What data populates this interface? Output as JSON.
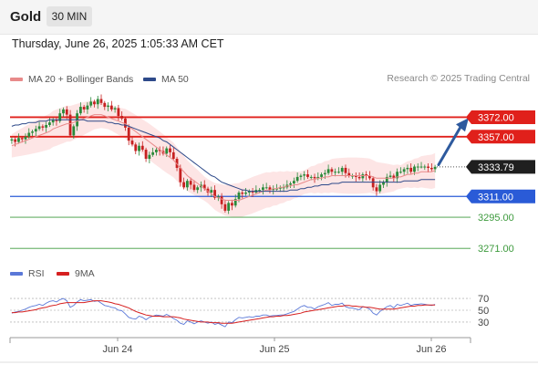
{
  "header": {
    "symbol": "Gold",
    "timeframe": "30 MIN",
    "timestamp": "Thursday, June 26, 2025 1:05:33 AM CET"
  },
  "legend": {
    "ma20_label": "MA 20 + Bollinger Bands",
    "ma50_label": "MA 50",
    "credit": "Research © 2025 Trading Central",
    "colors": {
      "ma20": "#e88a8a",
      "ma50": "#2e4a8a",
      "bands": "#fde0e0"
    }
  },
  "rsi_legend": {
    "rsi_label": "RSI",
    "ma9_label": "9MA",
    "colors": {
      "rsi": "#5a78d8",
      "ma9": "#d62020"
    }
  },
  "chart_data": {
    "type": "candlestick",
    "price_range": [
      3262,
      3392
    ],
    "current_price": 3333.79,
    "current_price_label": "3333.79",
    "levels": [
      {
        "value": 3372.0,
        "label": "3372.00",
        "kind": "resistance",
        "color": "#e0201b"
      },
      {
        "value": 3357.0,
        "label": "3357.00",
        "kind": "resistance",
        "color": "#e0201b"
      },
      {
        "value": 3311.0,
        "label": "3311.00",
        "kind": "pivot",
        "color": "#2a5bd7"
      },
      {
        "value": 3295.0,
        "label": "3295.00",
        "kind": "support",
        "color": "#3d9a3d"
      },
      {
        "value": 3271.0,
        "label": "3271.00",
        "kind": "support",
        "color": "#3d9a3d"
      }
    ],
    "forecast_arrow": {
      "from": 3334,
      "to": 3370,
      "direction": "up"
    },
    "x_ticks": [
      "Jun 24",
      "Jun 25",
      "Jun 26"
    ],
    "candles_close": [
      3355,
      3353,
      3356,
      3355,
      3357,
      3360,
      3361,
      3363,
      3365,
      3364,
      3366,
      3368,
      3370,
      3369,
      3375,
      3378,
      3374,
      3358,
      3365,
      3375,
      3380,
      3378,
      3381,
      3384,
      3382,
      3386,
      3383,
      3380,
      3381,
      3378,
      3379,
      3373,
      3371,
      3364,
      3354,
      3351,
      3346,
      3350,
      3347,
      3340,
      3343,
      3345,
      3347,
      3346,
      3344,
      3348,
      3345,
      3340,
      3333,
      3322,
      3318,
      3323,
      3320,
      3316,
      3318,
      3320,
      3317,
      3314,
      3316,
      3310,
      3311,
      3305,
      3300,
      3306,
      3304,
      3309,
      3314,
      3313,
      3314,
      3315,
      3314,
      3316,
      3316,
      3318,
      3318,
      3316,
      3317,
      3317,
      3318,
      3318,
      3320,
      3321,
      3323,
      3326,
      3327,
      3328,
      3326,
      3326,
      3325,
      3326,
      3328,
      3329,
      3332,
      3330,
      3330,
      3330,
      3333,
      3329,
      3327,
      3327,
      3326,
      3325,
      3328,
      3327,
      3325,
      3318,
      3315,
      3320,
      3322,
      3326,
      3327,
      3325,
      3330,
      3330,
      3332,
      3333,
      3330,
      3334,
      3334,
      3334,
      3334,
      3333,
      3332,
      3333.79
    ],
    "ma20": [
      3350,
      3351,
      3352,
      3353,
      3354,
      3355,
      3356,
      3357,
      3358,
      3359,
      3360,
      3361,
      3363,
      3364,
      3365,
      3366,
      3367,
      3367,
      3368,
      3369,
      3370,
      3371,
      3372,
      3373,
      3374,
      3374,
      3374,
      3373,
      3372,
      3371,
      3370,
      3369,
      3368,
      3367,
      3365,
      3363,
      3361,
      3359,
      3357,
      3355,
      3353,
      3351,
      3349,
      3347,
      3345,
      3343,
      3341,
      3339,
      3336,
      3333,
      3330,
      3327,
      3325,
      3323,
      3321,
      3319,
      3317,
      3315,
      3313,
      3311,
      3310,
      3309,
      3308,
      3308,
      3308,
      3308,
      3308,
      3309,
      3310,
      3311,
      3312,
      3313,
      3314,
      3315,
      3316,
      3316,
      3317,
      3317,
      3318,
      3318,
      3319,
      3319,
      3320,
      3320,
      3321,
      3322,
      3323,
      3324,
      3324,
      3325,
      3325,
      3326,
      3326,
      3327,
      3327,
      3327,
      3327,
      3327,
      3327,
      3327,
      3327,
      3327,
      3327,
      3327,
      3327,
      3326,
      3325,
      3325,
      3325,
      3325,
      3325,
      3325,
      3326,
      3326,
      3327,
      3328,
      3328,
      3329,
      3329,
      3330,
      3330,
      3330,
      3330,
      3331
    ],
    "ma50": [
      3365,
      3366,
      3366,
      3367,
      3367,
      3368,
      3368,
      3368,
      3369,
      3369,
      3369,
      3370,
      3370,
      3370,
      3370,
      3370,
      3370,
      3370,
      3370,
      3370,
      3370,
      3370,
      3369,
      3369,
      3369,
      3369,
      3369,
      3369,
      3368,
      3368,
      3367,
      3367,
      3366,
      3366,
      3365,
      3364,
      3363,
      3362,
      3361,
      3360,
      3359,
      3358,
      3357,
      3356,
      3354,
      3353,
      3351,
      3349,
      3347,
      3345,
      3343,
      3341,
      3339,
      3337,
      3335,
      3333,
      3331,
      3329,
      3327,
      3326,
      3324,
      3322,
      3321,
      3320,
      3319,
      3318,
      3317,
      3316,
      3316,
      3315,
      3315,
      3315,
      3315,
      3315,
      3315,
      3315,
      3315,
      3315,
      3315,
      3315,
      3315,
      3316,
      3316,
      3316,
      3317,
      3317,
      3318,
      3318,
      3319,
      3319,
      3320,
      3320,
      3320,
      3321,
      3321,
      3321,
      3322,
      3322,
      3322,
      3322,
      3322,
      3322,
      3322,
      3322,
      3322,
      3322,
      3322,
      3322,
      3322,
      3322,
      3322,
      3322,
      3322,
      3322,
      3323,
      3323,
      3323,
      3323,
      3323,
      3324,
      3324,
      3324,
      3324,
      3324
    ],
    "rsi": {
      "range": [
        16,
        84
      ],
      "ticks": [
        70,
        50,
        30
      ],
      "tick_labels": [
        "70",
        "50",
        "30"
      ],
      "values": [
        45,
        47,
        48,
        50,
        52,
        55,
        57,
        58,
        60,
        58,
        62,
        65,
        66,
        64,
        68,
        70,
        66,
        55,
        58,
        64,
        68,
        66,
        67,
        68,
        65,
        66,
        62,
        58,
        57,
        55,
        54,
        50,
        49,
        44,
        38,
        36,
        35,
        40,
        38,
        34,
        38,
        40,
        42,
        41,
        40,
        43,
        40,
        36,
        33,
        28,
        26,
        32,
        30,
        27,
        30,
        32,
        30,
        28,
        30,
        26,
        28,
        25,
        22,
        30,
        29,
        34,
        38,
        37,
        38,
        39,
        38,
        40,
        40,
        42,
        42,
        40,
        41,
        41,
        42,
        42,
        44,
        46,
        48,
        52,
        56,
        58,
        55,
        55,
        52,
        56,
        58,
        60,
        63,
        58,
        60,
        60,
        62,
        56,
        54,
        54,
        52,
        51,
        56,
        55,
        52,
        45,
        42,
        48,
        52,
        56,
        58,
        54,
        60,
        58,
        60,
        62,
        58,
        60,
        60,
        61,
        60,
        59,
        58,
        60
      ],
      "ma9": [
        46,
        46,
        47,
        47,
        48,
        49,
        50,
        51,
        53,
        54,
        55,
        57,
        58,
        59,
        61,
        62,
        63,
        63,
        63,
        63,
        63,
        63,
        64,
        65,
        66,
        66,
        66,
        65,
        64,
        63,
        61,
        60,
        58,
        56,
        54,
        51,
        48,
        46,
        44,
        42,
        41,
        40,
        40,
        40,
        39,
        39,
        39,
        39,
        38,
        37,
        35,
        34,
        33,
        32,
        31,
        30,
        30,
        30,
        29,
        29,
        29,
        28,
        28,
        28,
        28,
        29,
        30,
        31,
        32,
        33,
        34,
        35,
        36,
        37,
        38,
        39,
        39,
        40,
        40,
        41,
        41,
        42,
        43,
        44,
        45,
        47,
        48,
        49,
        50,
        51,
        52,
        53,
        54,
        55,
        56,
        57,
        57,
        58,
        58,
        57,
        57,
        56,
        56,
        55,
        55,
        54,
        53,
        52,
        52,
        52,
        52,
        52,
        53,
        54,
        55,
        56,
        57,
        57,
        58,
        58,
        59,
        59,
        59,
        59
      ]
    }
  }
}
